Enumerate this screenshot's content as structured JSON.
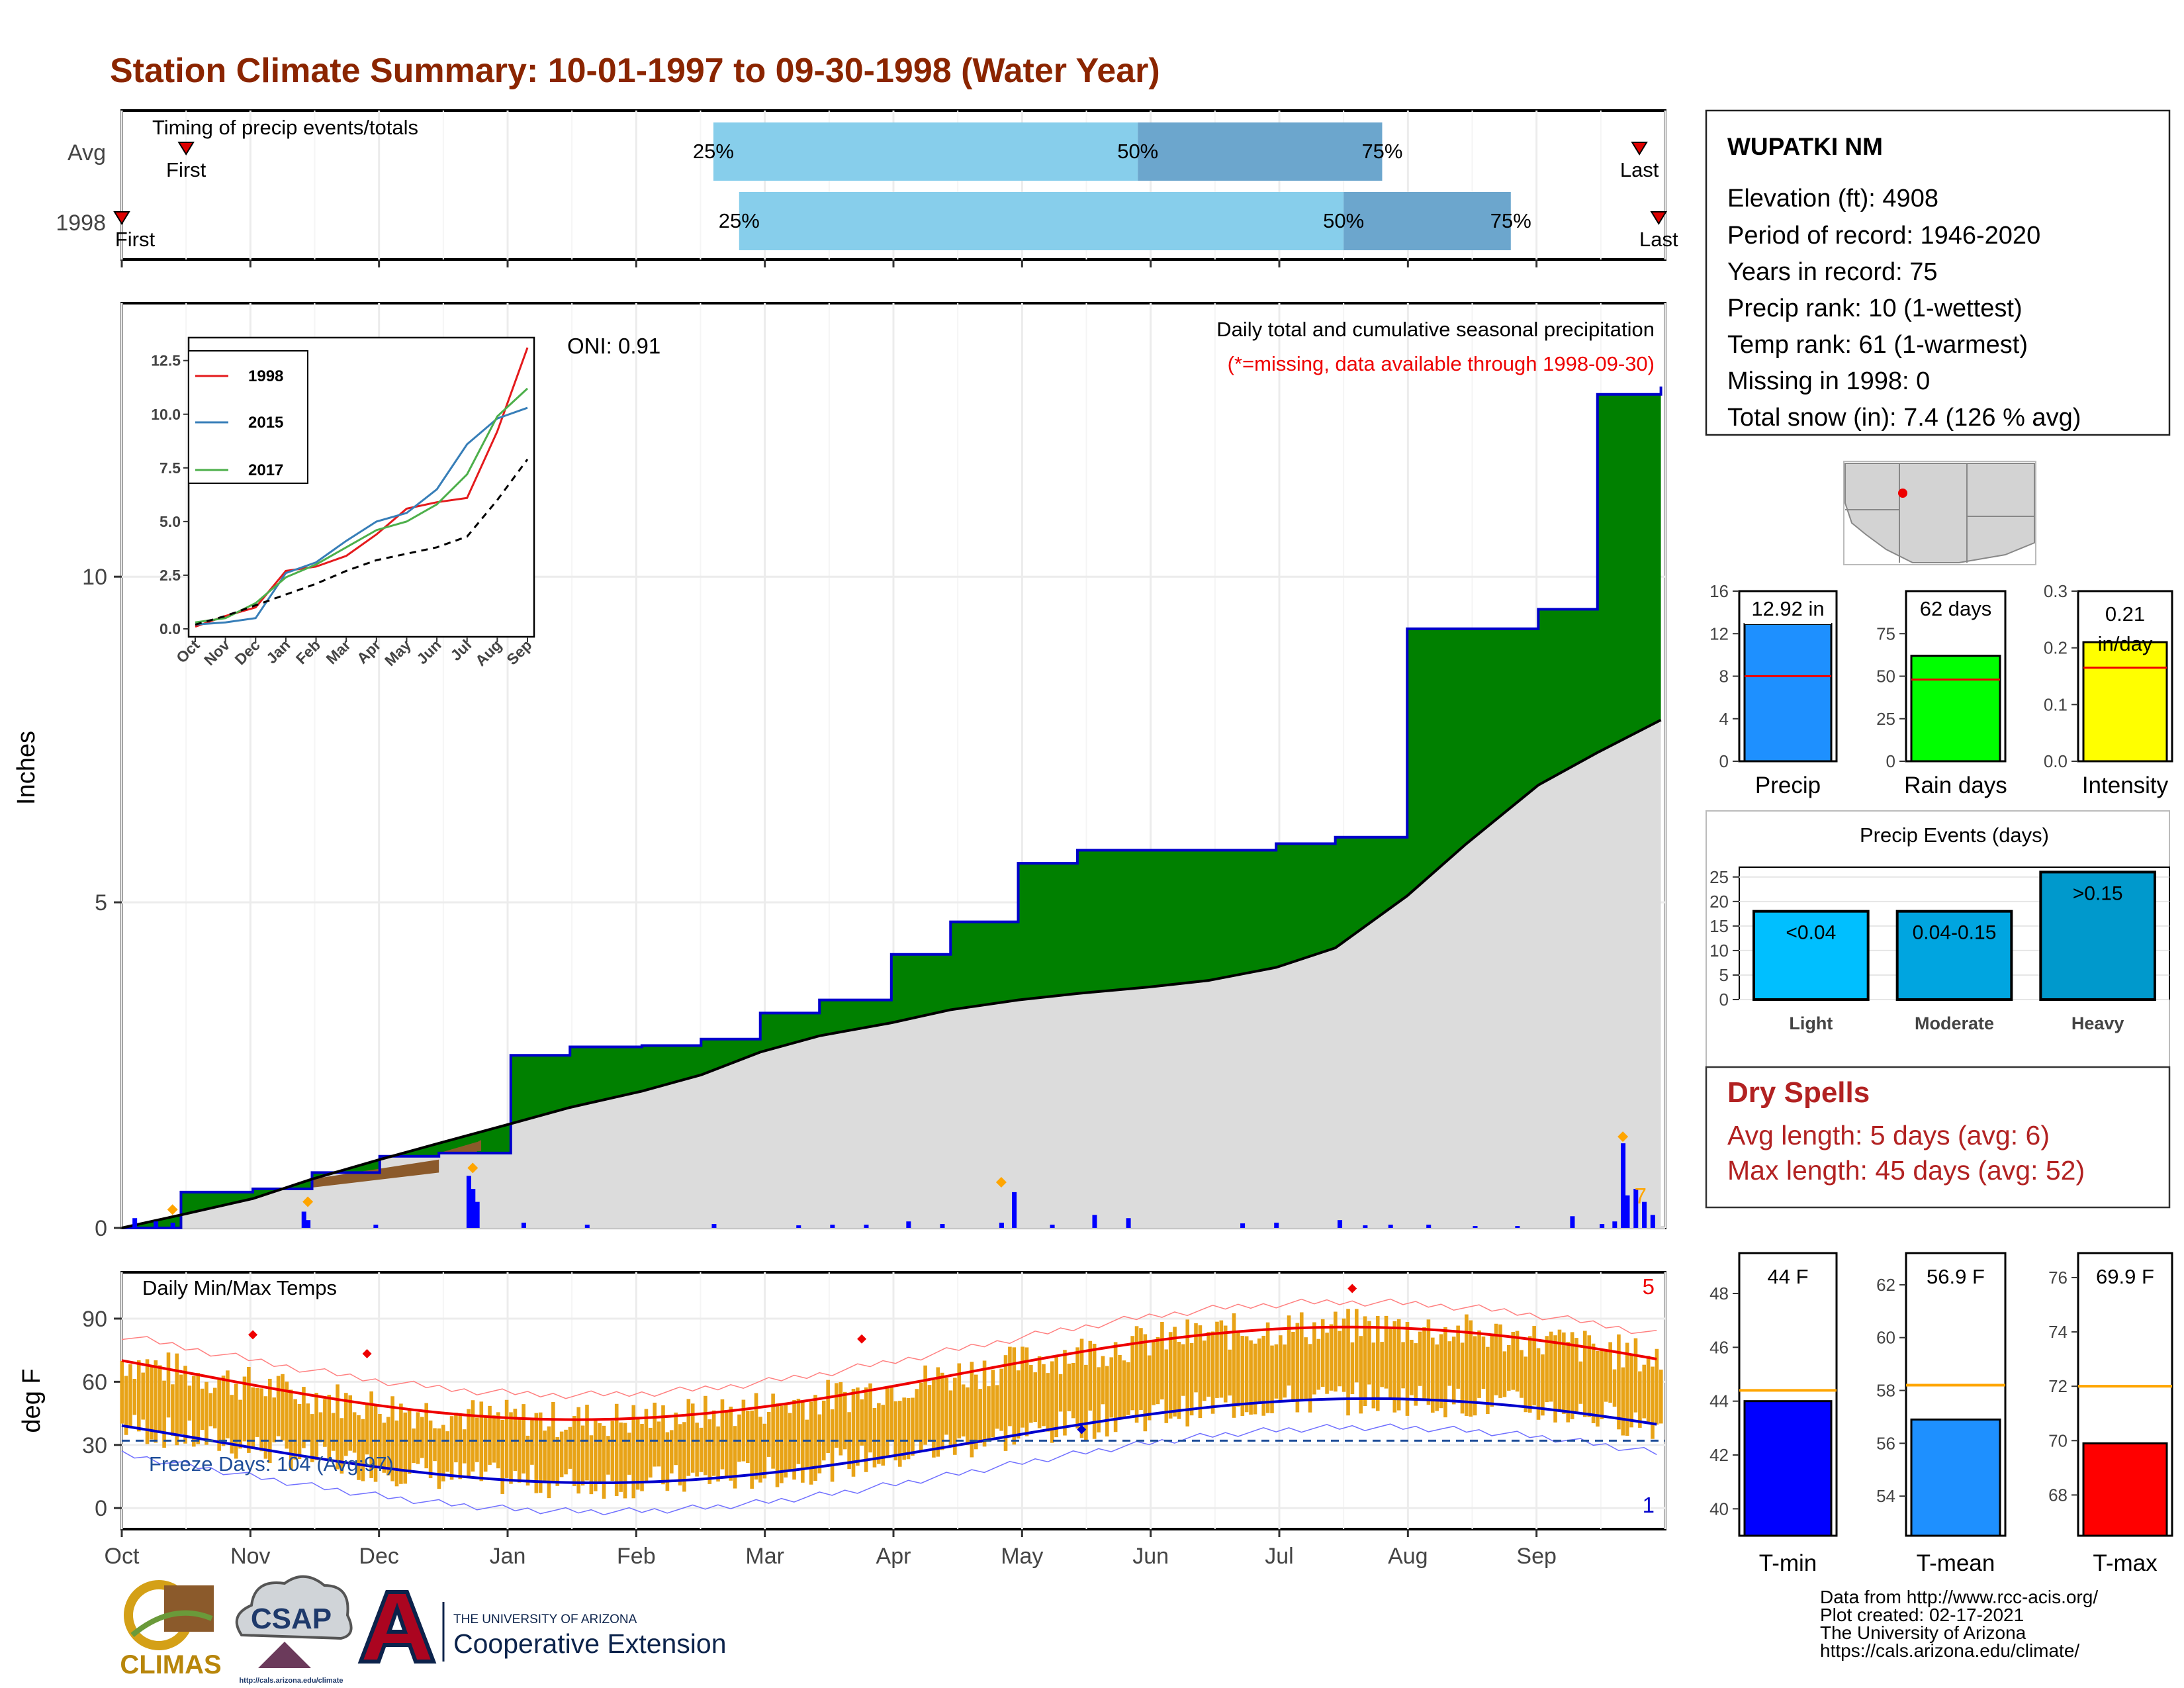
{
  "title": "Station Climate Summary: 10-01-1997 to 09-30-1998 (Water Year)",
  "months": [
    "Oct",
    "Nov",
    "Dec",
    "Jan",
    "Feb",
    "Mar",
    "Apr",
    "May",
    "Jun",
    "Jul",
    "Aug",
    "Sep"
  ],
  "timing": {
    "label": "Timing of precip events/totals",
    "rows": [
      {
        "name": "Avg",
        "first_label": "First",
        "last_label": "Last",
        "first_month": 0.5,
        "last_month": 11.8,
        "p25_label": "25%",
        "p50_label": "50%",
        "p75_label": "75%",
        "p25": 4.6,
        "p50": 7.9,
        "p75": 9.8
      },
      {
        "name": "1998",
        "first_label": "First",
        "last_label": "Last",
        "first_month": 0.0,
        "last_month": 11.95,
        "p25_label": "25%",
        "p50_label": "50%",
        "p75_label": "75%",
        "p25": 4.8,
        "p50": 9.5,
        "p75": 10.8
      }
    ],
    "colors": {
      "light": "#87ceeb",
      "dark": "#6ca6cd",
      "marker": "#dd0000"
    }
  },
  "precip": {
    "title": "Daily total and cumulative seasonal precipitation",
    "subtitle": "(*=missing, data available through 1998-09-30)",
    "oni": "ONI: 0.91",
    "ylabel": "Inches",
    "yticks": [
      "0",
      "5",
      "10"
    ],
    "corner_count": "7",
    "colors": {
      "above": "#008000",
      "below": "#8b5a2b",
      "avg": "#dcdcdc",
      "line": "#0000cc",
      "bars": "#0000ff",
      "dots": "#ffa500"
    }
  },
  "inset": {
    "legend": [
      "1998",
      "2015",
      "2017"
    ],
    "colors": [
      "#e41a1c",
      "#377eb8",
      "#4daf4a"
    ],
    "yticks": [
      "0.0",
      "2.5",
      "5.0",
      "7.5",
      "10.0",
      "12.5"
    ]
  },
  "temps": {
    "label": "Daily Min/Max Temps",
    "ylabel": "deg F",
    "yticks": [
      "0",
      "30",
      "60",
      "90"
    ],
    "freeze_label": "Freeze Days: 104 (Avg:97)",
    "count_high": "5",
    "count_low": "1",
    "colors": {
      "bars": "#e8a317",
      "max_line": "#ee0000",
      "min_line": "#0000cc",
      "max_rec": "#ff8080",
      "min_rec": "#7070ff",
      "freeze": "#1f4e99"
    }
  },
  "station": {
    "name": "WUPATKI NM",
    "lines": [
      "Elevation (ft): 4908",
      "Period of record: 1946-2020",
      "Years in record: 75",
      "Precip rank: 10 (1-wettest)",
      "Temp rank: 61 (1-warmest)",
      "Missing in 1998: 0",
      "Total snow (in): 7.4 (126 % avg)"
    ]
  },
  "summary_bars": [
    {
      "name": "Precip",
      "label": "12.92 in",
      "value": 12.92,
      "avg": 8.0,
      "ymax": 16,
      "ticks": [
        "0",
        "4",
        "8",
        "12",
        "16"
      ],
      "color": "#1e90ff"
    },
    {
      "name": "Rain days",
      "label": "62 days",
      "value": 62,
      "avg": 48,
      "ymax": 100,
      "ticks": [
        "0",
        "25",
        "50",
        "75"
      ],
      "color": "#00ff00"
    },
    {
      "name": "Intensity",
      "label_line1": "0.21",
      "label_line2": "in/day",
      "value": 0.21,
      "avg": 0.165,
      "ymax": 0.3,
      "ticks": [
        "0.0",
        "0.1",
        "0.2",
        "0.3"
      ],
      "color": "#ffff00"
    }
  ],
  "events": {
    "title": "Precip Events (days)",
    "ticks": [
      "0",
      "5",
      "10",
      "15",
      "20",
      "25"
    ],
    "categories": [
      "Light",
      "Moderate",
      "Heavy"
    ],
    "labels": [
      "<0.04",
      "0.04-0.15",
      ">0.15"
    ],
    "values": [
      18,
      18,
      26
    ],
    "colors": [
      "#00bfff",
      "#00a5e0",
      "#0099cc"
    ]
  },
  "dry_spells": {
    "title": "Dry Spells",
    "lines": [
      "Avg length: 5 days (avg: 6)",
      "Max length: 45 days (avg: 52)"
    ]
  },
  "temp_bars": [
    {
      "name": "T-min",
      "label": "44 F",
      "value": 44.0,
      "avg": 44.4,
      "ymin": 39,
      "ymax": 49.5,
      "ticks": [
        "40",
        "42",
        "44",
        "46",
        "48"
      ],
      "tick_vals": [
        40,
        42,
        44,
        46,
        48
      ],
      "color": "#0000ff"
    },
    {
      "name": "T-mean",
      "label": "56.9 F",
      "value": 56.9,
      "avg": 58.2,
      "ymin": 52.5,
      "ymax": 63.2,
      "ticks": [
        "54",
        "56",
        "58",
        "60",
        "62"
      ],
      "tick_vals": [
        54,
        56,
        58,
        60,
        62
      ],
      "color": "#1e90ff"
    },
    {
      "name": "T-max",
      "label": "69.9 F",
      "value": 69.9,
      "avg": 72.0,
      "ymin": 66.5,
      "ymax": 76.9,
      "ticks": [
        "68",
        "70",
        "72",
        "74",
        "76"
      ],
      "tick_vals": [
        68,
        70,
        72,
        74,
        76
      ],
      "color": "#ff0000"
    }
  ],
  "footer": {
    "lines": [
      "Data from http://www.rcc-acis.org/",
      "Plot created: 02-17-2021",
      "The University of Arizona",
      "https://cals.arizona.edu/climate/"
    ],
    "climas": "CLIMAS",
    "csap": "CSAP",
    "csap_url": "http://cals.arizona.edu/climate",
    "ua_small": "THE UNIVERSITY OF ARIZONA",
    "ua_big": "Cooperative Extension"
  },
  "chart_data": {
    "type": "area",
    "title": "Daily total and cumulative seasonal precipitation",
    "xlabel": "",
    "ylabel": "Inches",
    "x": [
      "1997-10-01",
      "1997-10-15",
      "1997-11-01",
      "1997-11-15",
      "1997-12-01",
      "1997-12-15",
      "1998-01-01",
      "1998-01-15",
      "1998-02-01",
      "1998-02-15",
      "1998-03-01",
      "1998-03-15",
      "1998-04-01",
      "1998-04-15",
      "1998-05-01",
      "1998-05-15",
      "1998-06-01",
      "1998-06-15",
      "1998-07-01",
      "1998-07-15",
      "1998-08-01",
      "1998-08-15",
      "1998-09-01",
      "1998-09-15",
      "1998-09-30"
    ],
    "series": [
      {
        "name": "1998",
        "values": [
          0.0,
          0.55,
          0.6,
          0.85,
          1.1,
          1.15,
          2.65,
          2.78,
          2.8,
          2.9,
          3.3,
          3.5,
          4.2,
          4.7,
          5.6,
          5.8,
          5.8,
          5.8,
          5.9,
          6.0,
          9.2,
          9.2,
          9.5,
          12.8,
          12.92
        ]
      },
      {
        "name": "",
        "values": [
          0.0,
          0.2,
          0.45,
          0.75,
          1.05,
          1.3,
          1.6,
          1.85,
          2.1,
          2.35,
          2.7,
          2.95,
          3.15,
          3.35,
          3.5,
          3.6,
          3.7,
          3.8,
          4.0,
          4.3,
          5.1,
          5.9,
          6.8,
          7.3,
          7.8
        ]
      }
    ],
    "ylim": [
      0,
      14
    ]
  }
}
